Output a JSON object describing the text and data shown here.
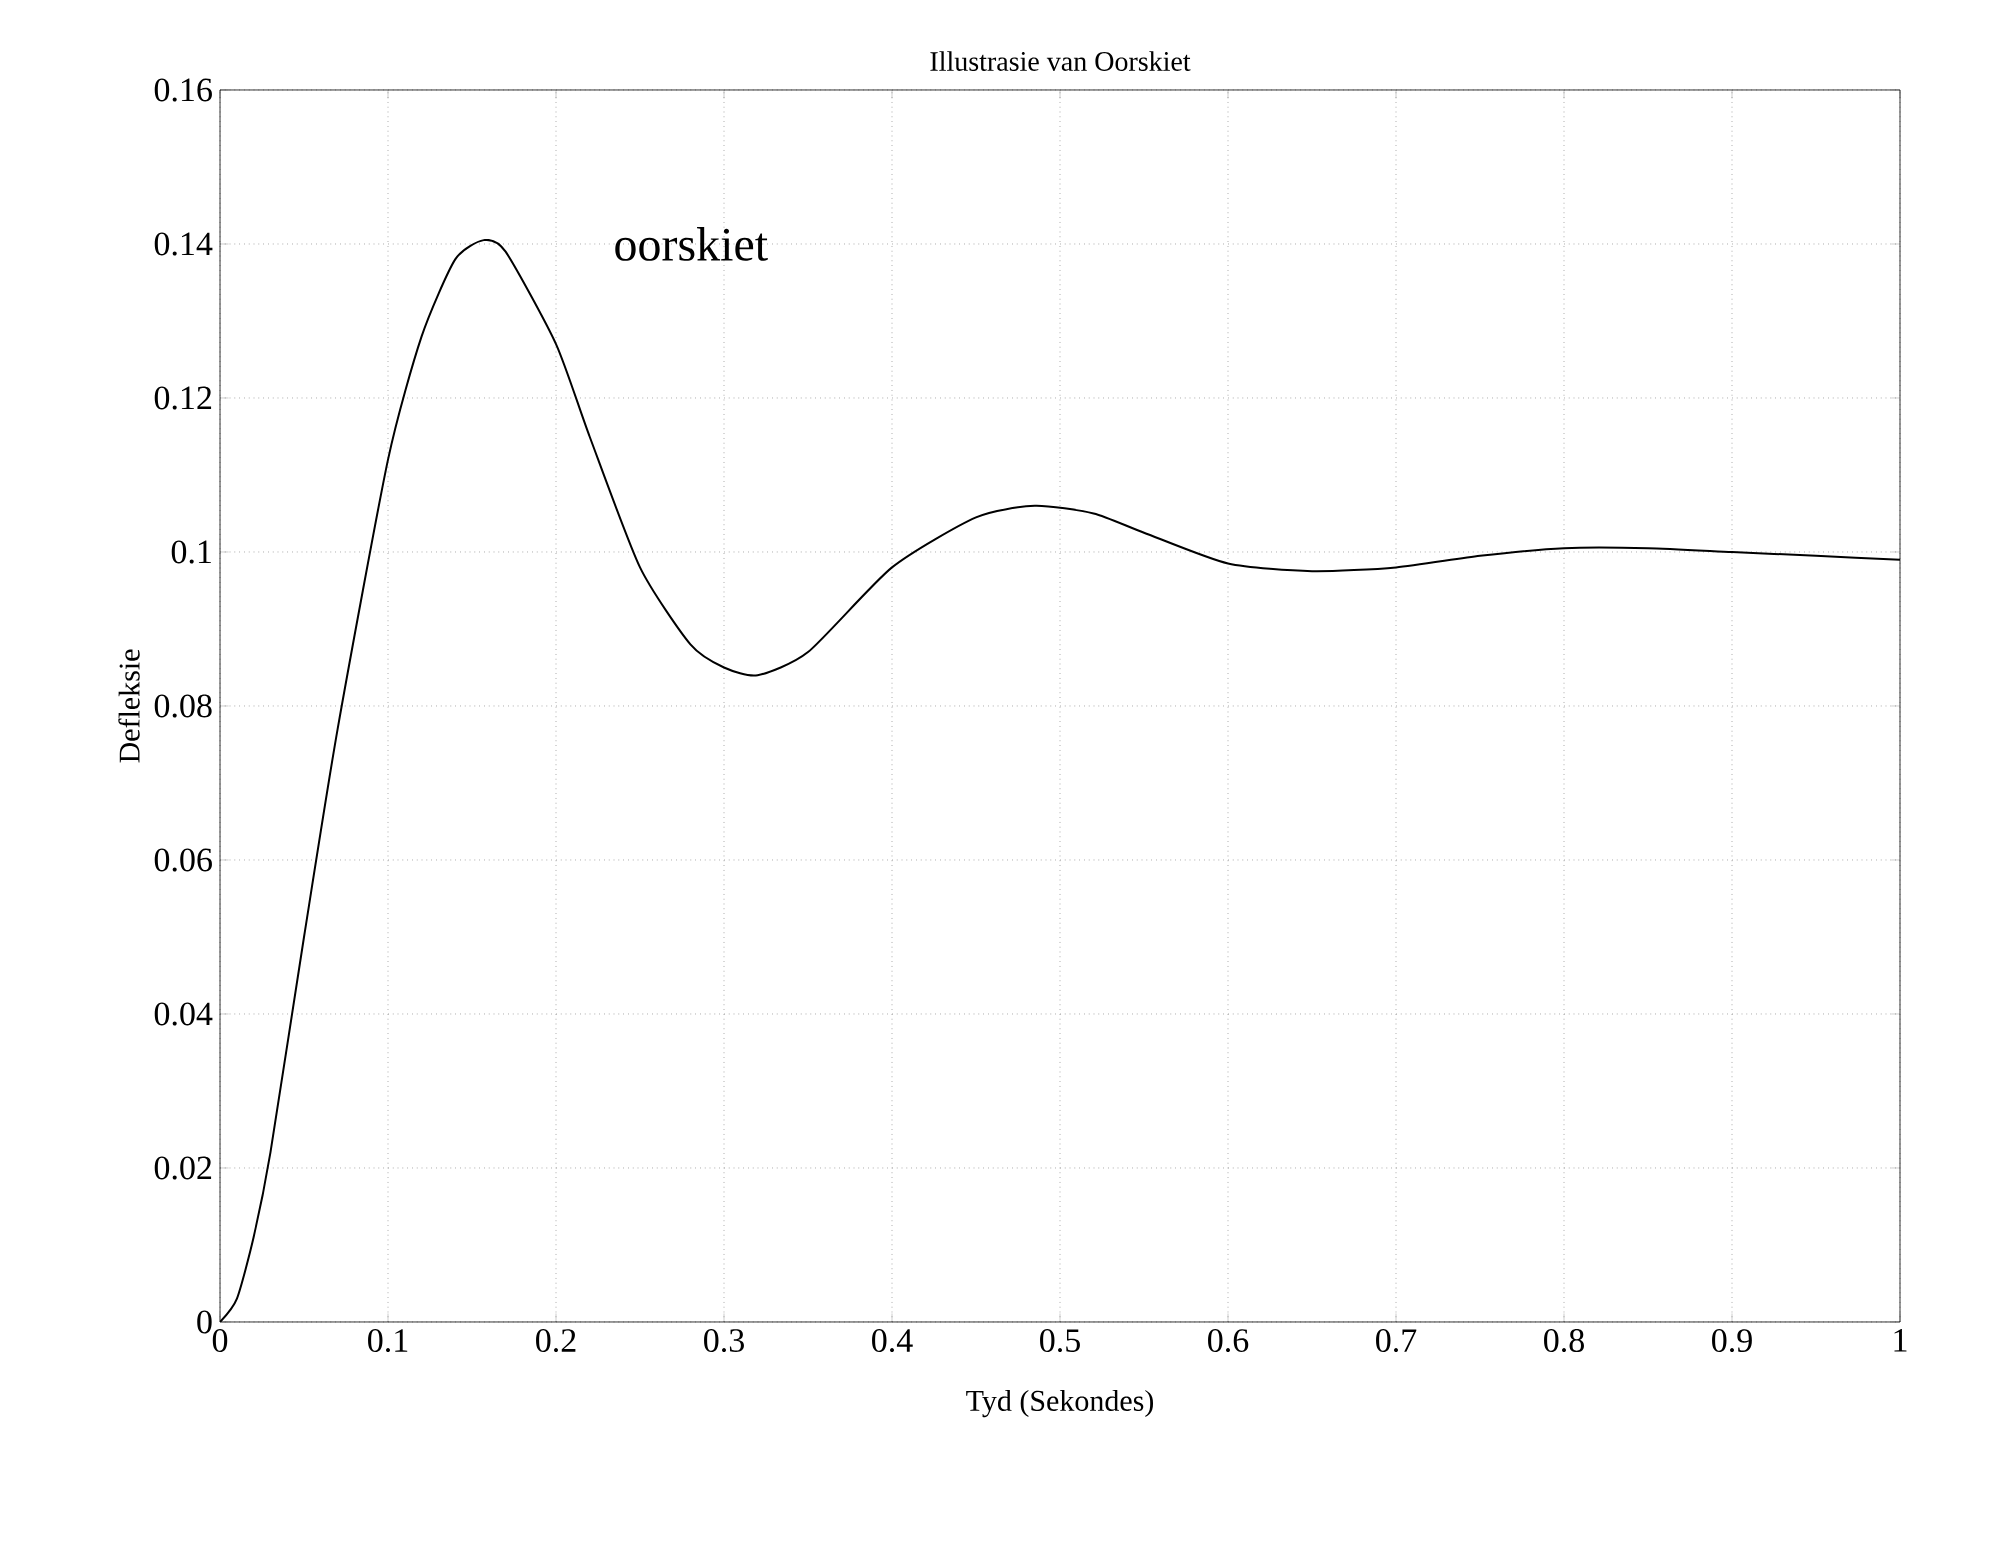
{
  "chart_data": {
    "type": "line",
    "title": "Illustrasie van Oorskiet",
    "xlabel": "Tyd (Sekondes)",
    "ylabel": "Defleksie",
    "xlim": [
      0,
      1
    ],
    "ylim": [
      0,
      0.16
    ],
    "xticks": [
      0,
      0.1,
      0.2,
      0.3,
      0.4,
      0.5,
      0.6,
      0.7,
      0.8,
      0.9,
      1
    ],
    "yticks": [
      0,
      0.02,
      0.04,
      0.06,
      0.08,
      0.1,
      0.12,
      0.14,
      0.16
    ],
    "grid": true,
    "marker": "none",
    "line_style": "solid",
    "series": [
      {
        "color": "#000000",
        "x": [
          0,
          0.01,
          0.02,
          0.03,
          0.05,
          0.07,
          0.1,
          0.12,
          0.14,
          0.157,
          0.17,
          0.2,
          0.22,
          0.25,
          0.28,
          0.3,
          0.32,
          0.35,
          0.4,
          0.45,
          0.485,
          0.52,
          0.55,
          0.6,
          0.65,
          0.7,
          0.75,
          0.8,
          0.85,
          0.9,
          0.95,
          1
        ],
        "values": [
          0,
          0.003,
          0.011,
          0.022,
          0.05,
          0.077,
          0.112,
          0.128,
          0.138,
          0.1405,
          0.139,
          0.127,
          0.115,
          0.098,
          0.088,
          0.085,
          0.084,
          0.087,
          0.098,
          0.1045,
          0.106,
          0.105,
          0.1025,
          0.0985,
          0.0975,
          0.098,
          0.0995,
          0.1005,
          0.1005,
          0.1,
          0.0995,
          0.099
        ]
      }
    ],
    "annotations": [
      "oorskiet"
    ]
  }
}
